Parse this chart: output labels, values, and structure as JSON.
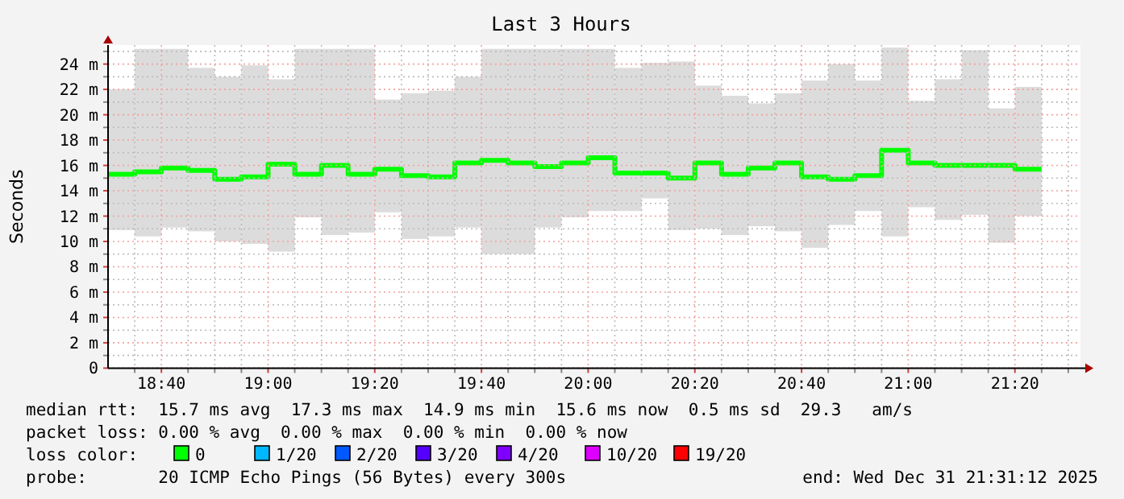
{
  "chart_data": {
    "type": "step",
    "title": "Last 3 Hours",
    "ylabel": "Seconds",
    "x": [
      18.5,
      18.5833,
      18.6667,
      18.75,
      18.8333,
      18.9167,
      19,
      19.0833,
      19.1667,
      19.25,
      19.3333,
      19.4167,
      19.5,
      19.5833,
      19.6667,
      19.75,
      19.8333,
      19.9167,
      20,
      20.0833,
      20.1667,
      20.25,
      20.3333,
      20.4167,
      20.5,
      20.5833,
      20.6667,
      20.75,
      20.8333,
      20.9167,
      21,
      21.0833,
      21.1667,
      21.25,
      21.3333,
      21.4167
    ],
    "series": [
      {
        "color": "#00ff00",
        "values": [
          15.3,
          15.5,
          15.8,
          15.6,
          14.9,
          15.1,
          16.1,
          15.3,
          16,
          15.3,
          15.7,
          15.2,
          15.1,
          16.2,
          16.4,
          16.2,
          15.9,
          16.2,
          16.6,
          15.4,
          15.4,
          15,
          16.2,
          15.3,
          15.8,
          16.2,
          15.1,
          14.9,
          15.2,
          17.2,
          16.2,
          16,
          16,
          16,
          15.7,
          15.7
        ],
        "upper": [
          22,
          25.2,
          25.2,
          23.7,
          23,
          23.9,
          22.8,
          25.2,
          25.2,
          25.2,
          21.2,
          21.7,
          21.9,
          23,
          25.2,
          25.2,
          25.2,
          25.2,
          25.2,
          23.7,
          24.1,
          24.2,
          22.3,
          21.5,
          20.9,
          21.7,
          22.7,
          24,
          22.7,
          25.3,
          21.1,
          22.8,
          25.1,
          20.5,
          22.2,
          22.2
        ],
        "lower": [
          10.9,
          10.4,
          11.1,
          10.8,
          10,
          9.8,
          9.2,
          11.9,
          10.5,
          10.7,
          12.3,
          10.2,
          10.4,
          11.1,
          9,
          9,
          11.1,
          11.9,
          12.4,
          12.4,
          13.4,
          10.9,
          11,
          10.5,
          11.2,
          10.8,
          9.5,
          11.3,
          12.4,
          10.4,
          12.7,
          11.7,
          12.1,
          9.9,
          12,
          12
        ]
      }
    ],
    "xlim": [
      18.5,
      21.538
    ],
    "ylim": [
      0,
      25.5
    ],
    "xticks": [
      {
        "value": 18.5833,
        "label": null
      },
      {
        "value": 18.6667,
        "label": "18:40"
      },
      {
        "value": 18.75,
        "label": null
      },
      {
        "value": 18.8333,
        "label": null
      },
      {
        "value": 18.9167,
        "label": null
      },
      {
        "value": 19,
        "label": "19:00"
      },
      {
        "value": 19.0833,
        "label": null
      },
      {
        "value": 19.1667,
        "label": null
      },
      {
        "value": 19.25,
        "label": null
      },
      {
        "value": 19.3333,
        "label": "19:20"
      },
      {
        "value": 19.4167,
        "label": null
      },
      {
        "value": 19.5,
        "label": null
      },
      {
        "value": 19.5833,
        "label": null
      },
      {
        "value": 19.6667,
        "label": "19:40"
      },
      {
        "value": 19.75,
        "label": null
      },
      {
        "value": 19.8333,
        "label": null
      },
      {
        "value": 19.9167,
        "label": null
      },
      {
        "value": 20,
        "label": "20:00"
      },
      {
        "value": 20.0833,
        "label": null
      },
      {
        "value": 20.1667,
        "label": null
      },
      {
        "value": 20.25,
        "label": null
      },
      {
        "value": 20.3333,
        "label": "20:20"
      },
      {
        "value": 20.4167,
        "label": null
      },
      {
        "value": 20.5,
        "label": null
      },
      {
        "value": 20.5833,
        "label": null
      },
      {
        "value": 20.6667,
        "label": "20:40"
      },
      {
        "value": 20.75,
        "label": null
      },
      {
        "value": 20.8333,
        "label": null
      },
      {
        "value": 20.9167,
        "label": null
      },
      {
        "value": 21,
        "label": "21:00"
      },
      {
        "value": 21.0833,
        "label": null
      },
      {
        "value": 21.1667,
        "label": null
      },
      {
        "value": 21.25,
        "label": null
      },
      {
        "value": 21.3333,
        "label": "21:20"
      },
      {
        "value": 21.4167,
        "label": null
      },
      {
        "value": 21.5,
        "label": null
      }
    ],
    "yticks": [
      0,
      {
        "value": 1,
        "label": null
      },
      {
        "value": 2,
        "label": "2 m"
      },
      {
        "value": 3,
        "label": null
      },
      {
        "value": 4,
        "label": "4 m"
      },
      {
        "value": 5,
        "label": null
      },
      {
        "value": 6,
        "label": "6 m"
      },
      {
        "value": 7,
        "label": null
      },
      {
        "value": 8,
        "label": "8 m"
      },
      {
        "value": 9,
        "label": null
      },
      {
        "value": 10,
        "label": "10 m"
      },
      {
        "value": 11,
        "label": null
      },
      {
        "value": 12,
        "label": "12 m"
      },
      {
        "value": 13,
        "label": null
      },
      {
        "value": 14,
        "label": "14 m"
      },
      {
        "value": 15,
        "label": null
      },
      {
        "value": 16,
        "label": "16 m"
      },
      {
        "value": 17,
        "label": null
      },
      {
        "value": 18,
        "label": "18 m"
      },
      {
        "value": 19,
        "label": null
      },
      {
        "value": 20,
        "label": "20 m"
      },
      {
        "value": 21,
        "label": null
      },
      {
        "value": 22,
        "label": "22 m"
      },
      {
        "value": 23,
        "label": null
      },
      {
        "value": 24,
        "label": "24 m"
      },
      {
        "value": 25,
        "label": null
      }
    ],
    "grid": true,
    "annotations": [
      "median rtt:  15.7 ms avg  17.3 ms max  14.9 ms min  15.6 ms now  0.5 ms sd  29.3   am/s",
      "packet loss: 0.00 % avg  0.00 % max  0.00 % min  0.00 % now",
      "loss color:",
      "0",
      "1/20",
      "2/20",
      "3/20",
      "4/20",
      "10/20",
      "19/20",
      "probe:       20 ICMP Echo Pings (56 Bytes) every 300s",
      "end: Wed Dec 31 21:31:12 2025"
    ]
  }
}
